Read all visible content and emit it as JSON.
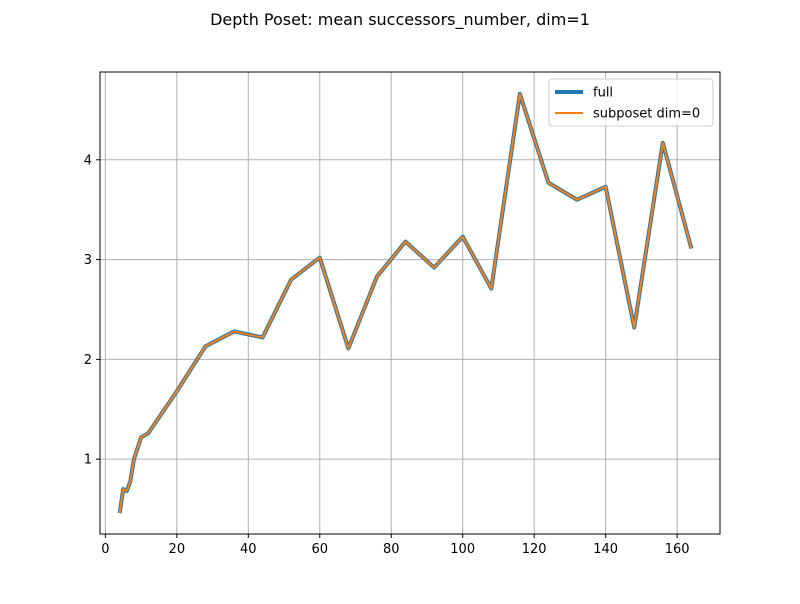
{
  "chart_data": {
    "type": "line",
    "title": "Depth Poset: mean successors_number, dim=1",
    "xlabel": "",
    "ylabel": "",
    "xlim": [
      -1.5,
      172
    ],
    "ylim": [
      0.25,
      4.88
    ],
    "xticks": [
      0,
      20,
      40,
      60,
      80,
      100,
      120,
      140,
      160
    ],
    "yticks": [
      1,
      2,
      3,
      4
    ],
    "grid": true,
    "legend_position": "top-right",
    "x": [
      4,
      5,
      6,
      7,
      8,
      10,
      12,
      20,
      28,
      36,
      44,
      52,
      60,
      68,
      76,
      84,
      92,
      100,
      108,
      116,
      124,
      132,
      140,
      148,
      156,
      164
    ],
    "series": [
      {
        "name": "full",
        "color": "#1f77b4",
        "values": [
          0.46,
          0.7,
          0.68,
          0.78,
          1.0,
          1.22,
          1.26,
          1.68,
          2.13,
          2.28,
          2.22,
          2.8,
          3.02,
          2.11,
          2.83,
          3.18,
          2.92,
          3.23,
          2.71,
          4.66,
          3.77,
          3.6,
          3.73,
          2.32,
          4.17,
          3.11
        ]
      },
      {
        "name": "subposet dim=0",
        "color": "#ff7f0e",
        "values": [
          0.46,
          0.7,
          0.68,
          0.78,
          1.0,
          1.22,
          1.26,
          1.68,
          2.13,
          2.28,
          2.22,
          2.8,
          3.02,
          2.11,
          2.83,
          3.18,
          2.92,
          3.23,
          2.71,
          4.66,
          3.77,
          3.6,
          3.73,
          2.32,
          4.17,
          3.11
        ]
      }
    ]
  }
}
